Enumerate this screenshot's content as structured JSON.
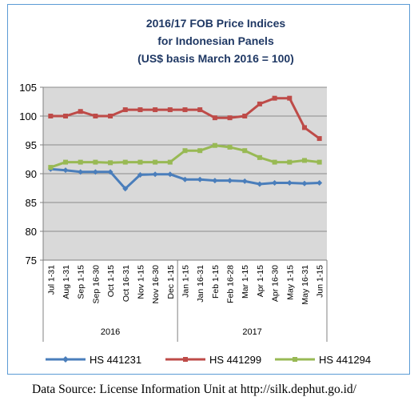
{
  "chart_data": {
    "type": "line",
    "title_lines": [
      "2016/17 FOB Price Indices",
      "for Indonesian Panels",
      "(US$ basis March 2016 = 100)"
    ],
    "x": [
      "Jul 1-31",
      "Aug 1-31",
      "Sep 1-15",
      "Sep 16-30",
      "Oct 1-15",
      "Oct 16-31",
      "Nov 1-15",
      "Nov 16-30",
      "Dec 1-15",
      "Jan 1-15",
      "Jan 16-31",
      "Feb 1-15",
      "Feb 16-28",
      "Mar 1-15",
      "Apr 1-15",
      "Apr 16-30",
      "May 1-15",
      "May 16-31",
      "Jun 1-15"
    ],
    "groups": [
      {
        "label": "2016",
        "start": 0,
        "end": 8
      },
      {
        "label": "2017",
        "start": 9,
        "end": 18
      }
    ],
    "ylim": [
      75,
      105
    ],
    "yticks": [
      75,
      80,
      85,
      90,
      95,
      100,
      105
    ],
    "grid": true,
    "legend_position": "bottom",
    "series": [
      {
        "name": "HS 441231",
        "color": "#4a7ebb",
        "values": [
          90.8,
          90.6,
          90.3,
          90.3,
          90.3,
          87.4,
          89.8,
          89.9,
          89.9,
          89.0,
          89.0,
          88.8,
          88.8,
          88.7,
          88.2,
          88.4,
          88.4,
          88.3,
          88.4
        ]
      },
      {
        "name": "HS 441299",
        "color": "#be4b48",
        "values": [
          100.0,
          100.0,
          100.8,
          100.0,
          100.0,
          101.1,
          101.1,
          101.1,
          101.1,
          101.1,
          101.1,
          99.7,
          99.7,
          100.0,
          102.1,
          103.1,
          103.1,
          98.0,
          96.1
        ]
      },
      {
        "name": "HS 441294",
        "color": "#98b954",
        "values": [
          91.1,
          92.0,
          92.0,
          92.0,
          91.9,
          92.0,
          92.0,
          92.0,
          92.0,
          94.0,
          94.0,
          94.9,
          94.6,
          94.0,
          92.8,
          92.0,
          92.0,
          92.3,
          92.0
        ]
      }
    ]
  },
  "source_text": "Data Source: License Information Unit at http://silk.dephut.go.id/"
}
